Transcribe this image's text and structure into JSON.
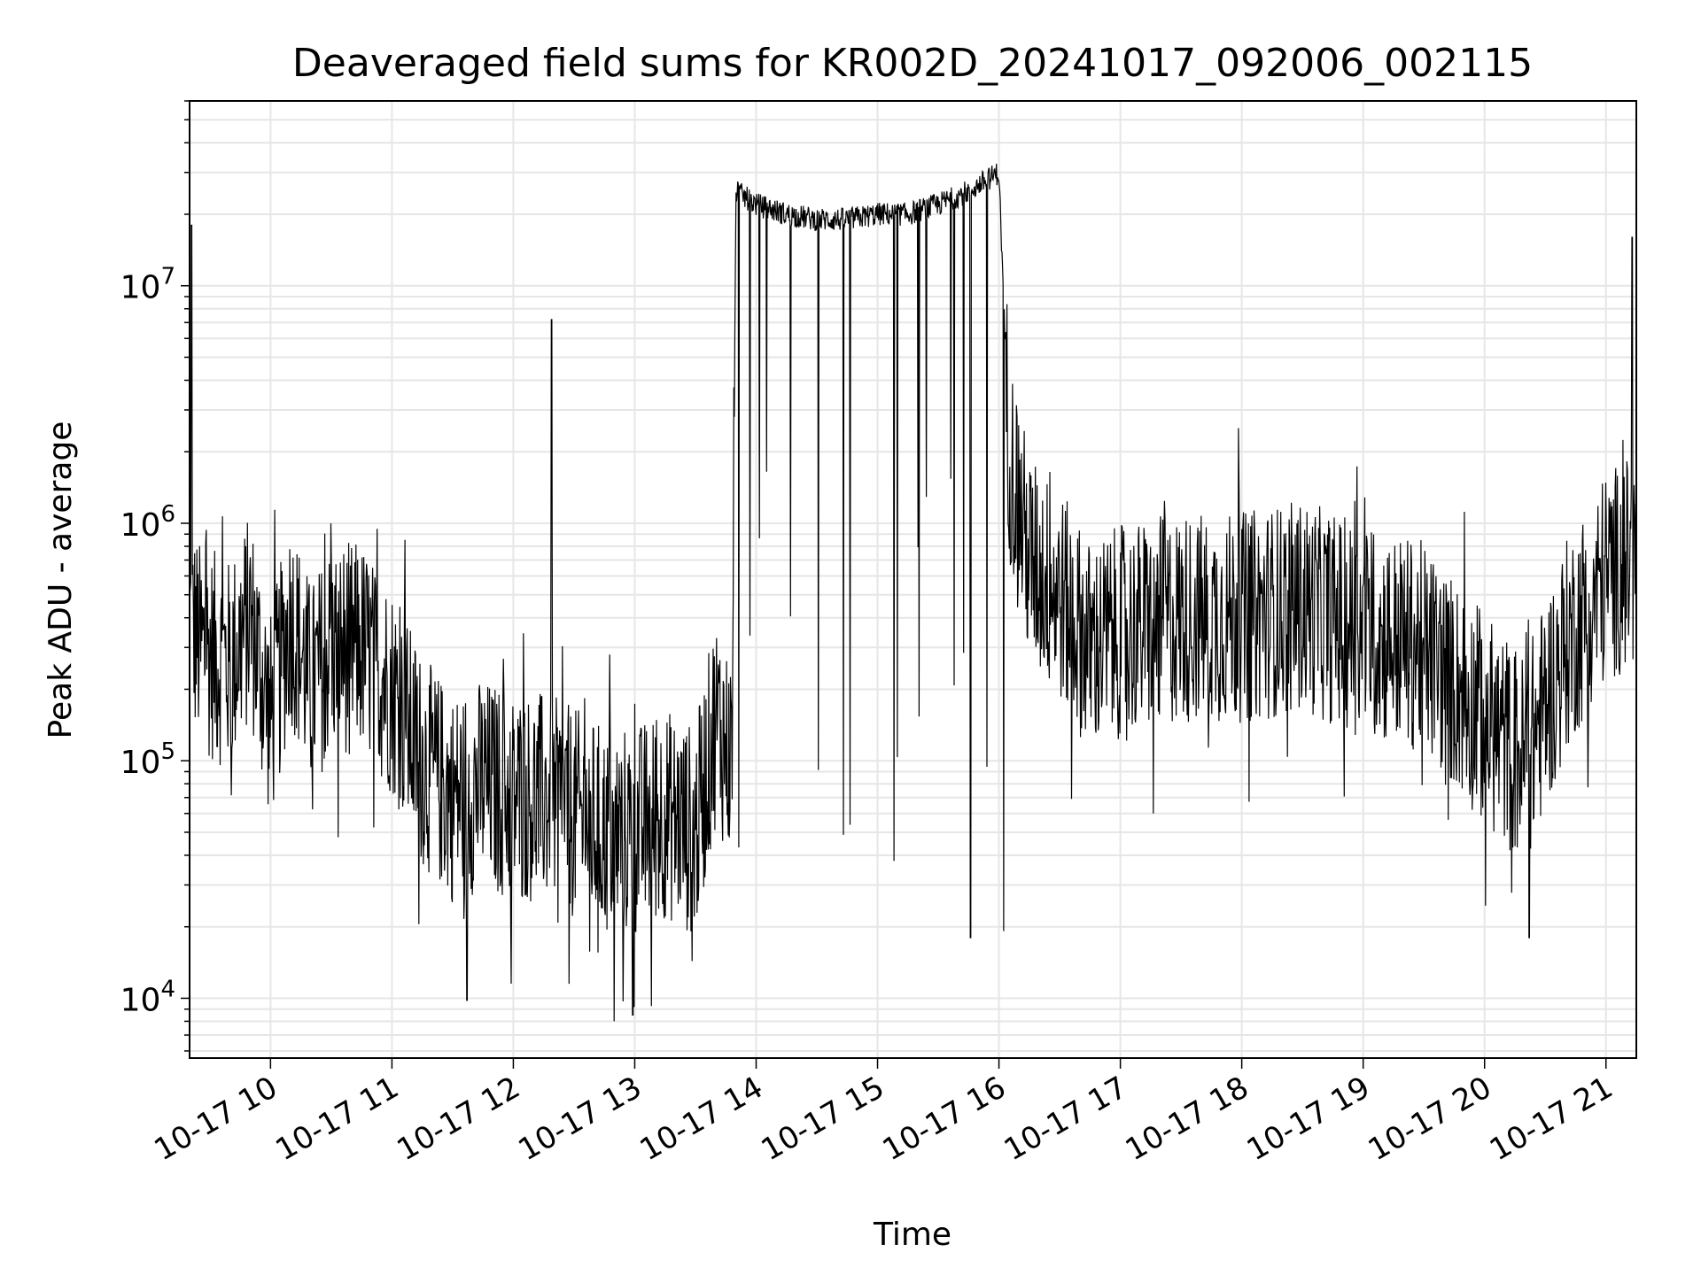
{
  "chart_data": {
    "type": "line",
    "title": "Deaveraged field sums for KR002D_20241017_092006_002115",
    "xlabel": "Time",
    "ylabel": "Peak ADU - average",
    "yscale": "log",
    "ylim": [
      5600,
      60000000
    ],
    "xlim": [
      "2024-10-17 09:20",
      "2024-10-17 21:15"
    ],
    "grid": true,
    "line_color": "#000000",
    "grid_color": "#e6e6e6",
    "x_ticks": [
      "10-17 10",
      "10-17 11",
      "10-17 12",
      "10-17 13",
      "10-17 14",
      "10-17 15",
      "10-17 16",
      "10-17 17",
      "10-17 18",
      "10-17 19",
      "10-17 20",
      "10-17 21"
    ],
    "x_tick_times": [
      "2024-10-17 10:00",
      "2024-10-17 11:00",
      "2024-10-17 12:00",
      "2024-10-17 13:00",
      "2024-10-17 14:00",
      "2024-10-17 15:00",
      "2024-10-17 16:00",
      "2024-10-17 17:00",
      "2024-10-17 18:00",
      "2024-10-17 19:00",
      "2024-10-17 20:00",
      "2024-10-17 21:00"
    ],
    "y_ticks": [
      {
        "base": "10",
        "exp": "4",
        "value": 10000
      },
      {
        "base": "10",
        "exp": "5",
        "value": 100000
      },
      {
        "base": "10",
        "exp": "6",
        "value": 1000000
      },
      {
        "base": "10",
        "exp": "7",
        "value": 10000000
      }
    ],
    "series": [
      {
        "x": [
          "2024-10-17 09:20",
          "2024-10-17 09:25",
          "2024-10-17 09:40",
          "2024-10-17 09:50",
          "2024-10-17 10:00",
          "2024-10-17 10:10",
          "2024-10-17 10:20",
          "2024-10-17 10:30",
          "2024-10-17 10:45",
          "2024-10-17 11:00",
          "2024-10-17 11:15",
          "2024-10-17 11:30",
          "2024-10-17 11:45",
          "2024-10-17 12:00",
          "2024-10-17 12:15",
          "2024-10-17 12:30",
          "2024-10-17 12:45",
          "2024-10-17 13:00",
          "2024-10-17 13:15",
          "2024-10-17 13:30",
          "2024-10-17 13:40",
          "2024-10-17 13:48",
          "2024-10-17 13:50",
          "2024-10-17 14:00",
          "2024-10-17 14:15",
          "2024-10-17 14:30",
          "2024-10-17 14:45",
          "2024-10-17 15:00",
          "2024-10-17 15:15",
          "2024-10-17 15:30",
          "2024-10-17 15:45",
          "2024-10-17 16:00",
          "2024-10-17 16:05",
          "2024-10-17 16:15",
          "2024-10-17 16:30",
          "2024-10-17 16:45",
          "2024-10-17 17:00",
          "2024-10-17 17:30",
          "2024-10-17 18:00",
          "2024-10-17 18:30",
          "2024-10-17 19:00",
          "2024-10-17 19:30",
          "2024-10-17 20:00",
          "2024-10-17 20:20",
          "2024-10-17 20:40",
          "2024-10-17 21:00",
          "2024-10-17 21:15"
        ],
        "y": [
          400000,
          300000,
          250000,
          400000,
          150000,
          400000,
          200000,
          300000,
          300000,
          200000,
          100000,
          70000,
          80000,
          70000,
          70000,
          60000,
          50000,
          50000,
          60000,
          50000,
          150000,
          100000,
          25000000,
          22000000,
          20000000,
          19000000,
          19000000,
          20000000,
          20000000,
          22000000,
          25000000,
          30000000,
          2000000,
          700000,
          500000,
          300000,
          350000,
          400000,
          400000,
          450000,
          350000,
          300000,
          150000,
          100000,
          300000,
          600000,
          700000
        ]
      }
    ],
    "spikes": [
      {
        "x": "2024-10-17 09:21",
        "y": 18000000
      },
      {
        "x": "2024-10-17 12:19",
        "y": 7200000
      },
      {
        "x": "2024-10-17 21:13",
        "y": 16000000
      }
    ],
    "dips": [
      {
        "x": "2024-10-17 12:59",
        "y": 8500
      },
      {
        "x": "2024-10-17 11:37",
        "y": 9800
      },
      {
        "x": "2024-10-17 15:46",
        "y": 18000
      },
      {
        "x": "2024-10-17 20:22",
        "y": 18000
      }
    ]
  }
}
